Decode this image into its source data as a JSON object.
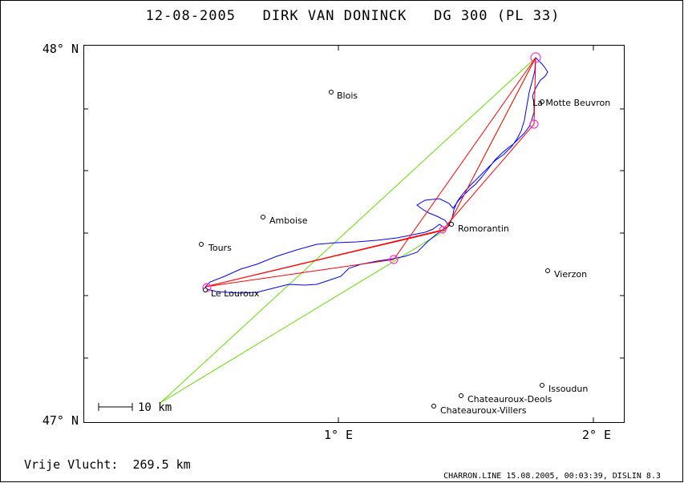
{
  "title": "12-08-2005   DIRK VAN DONINCK   DG 300 (PL 33)",
  "y_axis": {
    "top_label": "48° N",
    "bottom_label": "47° N"
  },
  "x_axis": {
    "label_1": "1° E",
    "label_2": "2° E"
  },
  "scale_bar": {
    "label": "10 km"
  },
  "free_flight": "Vrije Vlucht:  269.5 km",
  "footer_note": "CHARRON.LINE 15.08.2005, 00:03:39, DISLIN 8.3",
  "cities": [
    {
      "name": "Blois"
    },
    {
      "name": "La Motte Beuvron"
    },
    {
      "name": "Amboise"
    },
    {
      "name": "Tours"
    },
    {
      "name": "Romorantin"
    },
    {
      "name": "Vierzon"
    },
    {
      "name": "Le Louroux"
    },
    {
      "name": "Issoudun"
    },
    {
      "name": "Chateauroux-Deols"
    },
    {
      "name": "Chateauroux-Villers"
    }
  ],
  "colors": {
    "track": "#0000ff",
    "optimized_route": "#ff0000",
    "triangle": "#66dd00",
    "turnpoint": "#ff33cc",
    "frame": "#000000"
  }
}
